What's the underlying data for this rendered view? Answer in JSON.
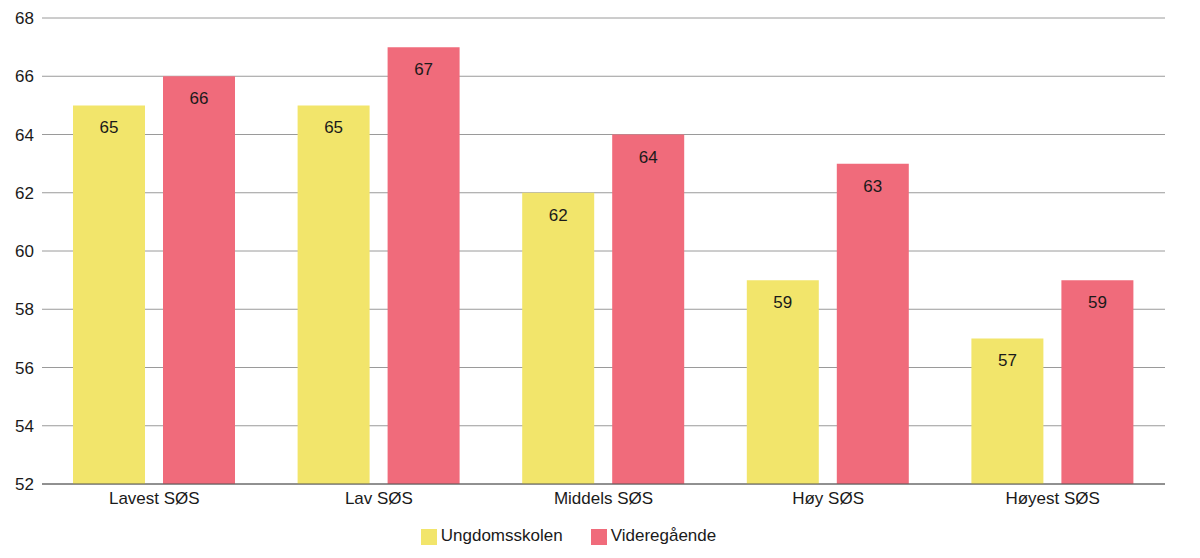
{
  "chart_data": {
    "type": "bar",
    "categories": [
      "Lavest SØS",
      "Lav SØS",
      "Middels SØS",
      "Høy SØS",
      "Høyest SØS"
    ],
    "series": [
      {
        "name": "Ungdomsskolen",
        "color": "#f2e56b",
        "values": [
          65,
          65,
          62,
          59,
          57
        ]
      },
      {
        "name": "Videregående",
        "color": "#f06b7b",
        "values": [
          66,
          67,
          64,
          63,
          59
        ]
      }
    ],
    "ylim": [
      52,
      68
    ],
    "yticks": [
      52,
      54,
      56,
      58,
      60,
      62,
      64,
      66,
      68
    ],
    "grid": true,
    "legend": "bottom",
    "data_labels": true
  }
}
